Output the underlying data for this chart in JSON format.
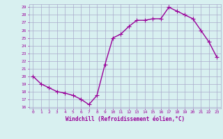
{
  "hours": [
    0,
    1,
    2,
    3,
    4,
    5,
    6,
    7,
    8,
    9,
    10,
    11,
    12,
    13,
    14,
    15,
    16,
    17,
    18,
    19,
    20,
    21,
    22,
    23
  ],
  "windchill": [
    20.0,
    19.0,
    18.5,
    18.0,
    17.8,
    17.5,
    17.0,
    16.3,
    17.5,
    21.5,
    25.0,
    25.5,
    26.5,
    27.3,
    27.3,
    27.5,
    27.5,
    29.0,
    28.5,
    28.0,
    27.5,
    26.0,
    24.5,
    22.5
  ],
  "line_color": "#990099",
  "marker": "+",
  "marker_size": 4,
  "bg_color": "#d8f0f0",
  "grid_color": "#aaaacc",
  "xlabel": "Windchill (Refroidissement éolien,°C)",
  "xlabel_color": "#990099",
  "tick_color": "#990099",
  "ylim": [
    16,
    29
  ],
  "yticks": [
    16,
    17,
    18,
    19,
    20,
    21,
    22,
    23,
    24,
    25,
    26,
    27,
    28,
    29
  ],
  "xticks": [
    0,
    1,
    2,
    3,
    4,
    5,
    6,
    7,
    8,
    9,
    10,
    11,
    12,
    13,
    14,
    15,
    16,
    17,
    18,
    19,
    20,
    21,
    22,
    23
  ],
  "line_width": 1.0
}
